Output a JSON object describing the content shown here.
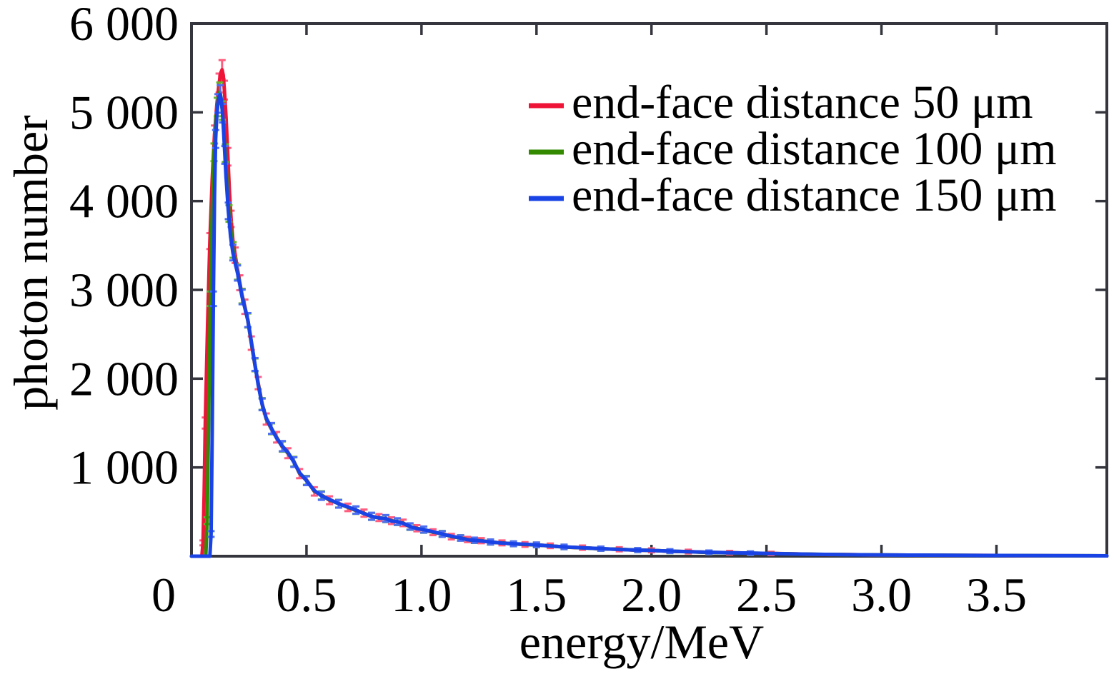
{
  "figure": {
    "background": "#ffffff",
    "frame_color": "#34353d",
    "text_color": "#000000"
  },
  "chart_data": {
    "type": "line",
    "title": "",
    "xlabel": "energy/MeV",
    "ylabel": "photon number",
    "xlim": [
      0,
      3.98
    ],
    "ylim": [
      0,
      6000
    ],
    "grid": false,
    "legend_position": "top-right",
    "x_ticks": [
      0,
      0.5,
      1.0,
      1.5,
      2.0,
      2.5,
      3.0,
      3.5
    ],
    "x_tick_labels": [
      "0",
      "0.5",
      "1.0",
      "1.5",
      "2.0",
      "2.5",
      "3.0",
      "3.5"
    ],
    "y_ticks": [
      1000,
      2000,
      3000,
      4000,
      5000,
      6000
    ],
    "y_tick_labels": [
      "1 000",
      "2 000",
      "3 000",
      "4 000",
      "5 000",
      "6 000"
    ],
    "series": [
      {
        "name": "end-face distance 50 μm",
        "color": "#ee1437",
        "error_color": "#ff5d80",
        "x": [
          0.0,
          0.045,
          0.05,
          0.055,
          0.06,
          0.07,
          0.08,
          0.09,
          0.1,
          0.11,
          0.12,
          0.128,
          0.133,
          0.138,
          0.143,
          0.15,
          0.158,
          0.165,
          0.172,
          0.18,
          0.19,
          0.2,
          0.21,
          0.22,
          0.232,
          0.245,
          0.26,
          0.276,
          0.29,
          0.307,
          0.325,
          0.348,
          0.37,
          0.395,
          0.419,
          0.445,
          0.47,
          0.5,
          0.534,
          0.565,
          0.6,
          0.64,
          0.68,
          0.715,
          0.75,
          0.783,
          0.815,
          0.845,
          0.87,
          0.895,
          0.92,
          0.95,
          0.98,
          1.01,
          1.05,
          1.09,
          1.13,
          1.17,
          1.2,
          1.23,
          1.26,
          1.3,
          1.35,
          1.4,
          1.45,
          1.5,
          1.56,
          1.62,
          1.7,
          1.78,
          1.86,
          1.94,
          2.0,
          2.08,
          2.16,
          2.25,
          2.34,
          2.43,
          2.52,
          2.62,
          2.72,
          2.85,
          3.0,
          3.15,
          3.3,
          3.45,
          3.6,
          3.75,
          3.9,
          3.98
        ],
        "y": [
          0,
          0,
          150,
          700,
          1500,
          2600,
          3550,
          4250,
          4750,
          5080,
          5330,
          5450,
          5480,
          5420,
          5250,
          4950,
          4500,
          4100,
          3800,
          3560,
          3390,
          3230,
          3080,
          2940,
          2810,
          2650,
          2400,
          2150,
          1950,
          1720,
          1545,
          1430,
          1340,
          1230,
          1160,
          1070,
          930,
          860,
          730,
          690,
          630,
          595,
          550,
          515,
          485,
          445,
          435,
          418,
          400,
          385,
          375,
          330,
          315,
          295,
          270,
          255,
          220,
          208,
          188,
          176,
          175,
          158,
          150,
          138,
          132,
          126,
          117,
          103,
          96,
          83,
          78,
          67,
          66,
          55,
          52,
          42,
          40,
          33,
          31,
          26,
          20,
          18,
          13,
          11,
          9,
          9,
          6,
          5,
          4,
          4
        ]
      },
      {
        "name": "end-face distance 100 μm",
        "color": "#338a00",
        "error_color": "#67b32e",
        "x": [
          0.0,
          0.062,
          0.068,
          0.075,
          0.082,
          0.09,
          0.098,
          0.105,
          0.112,
          0.118,
          0.123,
          0.128,
          0.134,
          0.14,
          0.147,
          0.155,
          0.163,
          0.172,
          0.181,
          0.19,
          0.2,
          0.21,
          0.22,
          0.232,
          0.245,
          0.26,
          0.276,
          0.29,
          0.307,
          0.325,
          0.348,
          0.37,
          0.395,
          0.419,
          0.445,
          0.47,
          0.5,
          0.534,
          0.565,
          0.6,
          0.64,
          0.68,
          0.715,
          0.75,
          0.783,
          0.815,
          0.845,
          0.87,
          0.895,
          0.92,
          0.95,
          0.98,
          1.01,
          1.05,
          1.09,
          1.13,
          1.17,
          1.2,
          1.23,
          1.26,
          1.3,
          1.35,
          1.4,
          1.45,
          1.5,
          1.56,
          1.62,
          1.7,
          1.78,
          1.86,
          1.94,
          2.0,
          2.08,
          2.16,
          2.25,
          2.34,
          2.43,
          2.52,
          2.62,
          2.72,
          2.85,
          3.0,
          3.15,
          3.3,
          3.45,
          3.6,
          3.75,
          3.9,
          3.98
        ],
        "y": [
          0,
          0,
          400,
          1600,
          2900,
          3900,
          4550,
          4870,
          5060,
          5170,
          5230,
          5170,
          5020,
          4800,
          4540,
          4200,
          3860,
          3640,
          3450,
          3310,
          3200,
          3070,
          2930,
          2800,
          2655,
          2410,
          2155,
          1940,
          1715,
          1550,
          1435,
          1335,
          1235,
          1165,
          1065,
          935,
          855,
          735,
          685,
          635,
          592,
          552,
          518,
          482,
          448,
          432,
          422,
          398,
          388,
          372,
          332,
          312,
          298,
          272,
          252,
          222,
          206,
          186,
          178,
          174,
          159,
          149,
          139,
          133,
          127,
          116,
          104,
          95,
          84,
          77,
          68,
          65,
          56,
          51,
          43,
          39,
          34,
          30,
          25,
          21,
          17,
          14,
          11,
          10,
          8,
          7,
          5,
          5,
          4
        ]
      },
      {
        "name": "end-face distance 150 μm",
        "color": "#1a43e6",
        "error_color": "#4e6ef2",
        "x": [
          0.0,
          0.08,
          0.085,
          0.09,
          0.095,
          0.1,
          0.105,
          0.11,
          0.115,
          0.12,
          0.125,
          0.13,
          0.135,
          0.14,
          0.145,
          0.15,
          0.16,
          0.17,
          0.18,
          0.19,
          0.2,
          0.21,
          0.22,
          0.232,
          0.245,
          0.26,
          0.276,
          0.29,
          0.307,
          0.325,
          0.348,
          0.37,
          0.395,
          0.419,
          0.445,
          0.47,
          0.5,
          0.534,
          0.565,
          0.6,
          0.64,
          0.68,
          0.715,
          0.75,
          0.783,
          0.815,
          0.845,
          0.87,
          0.895,
          0.92,
          0.95,
          0.98,
          1.01,
          1.05,
          1.09,
          1.13,
          1.17,
          1.2,
          1.23,
          1.26,
          1.3,
          1.35,
          1.4,
          1.45,
          1.5,
          1.56,
          1.62,
          1.7,
          1.78,
          1.86,
          1.94,
          2.0,
          2.08,
          2.16,
          2.25,
          2.34,
          2.43,
          2.52,
          2.62,
          2.72,
          2.85,
          3.0,
          3.15,
          3.3,
          3.45,
          3.6,
          3.75,
          3.9,
          3.98
        ],
        "y": [
          0,
          0,
          250,
          1400,
          2900,
          4050,
          4700,
          4960,
          5100,
          5180,
          5200,
          5140,
          4990,
          4760,
          4520,
          4280,
          3890,
          3600,
          3420,
          3300,
          3190,
          3060,
          2920,
          2795,
          2660,
          2420,
          2160,
          1930,
          1710,
          1555,
          1440,
          1330,
          1240,
          1170,
          1060,
          940,
          850,
          740,
          680,
          640,
          590,
          555,
          520,
          480,
          450,
          430,
          425,
          395,
          390,
          370,
          335,
          310,
          300,
          275,
          250,
          225,
          205,
          185,
          180,
          172,
          160,
          148,
          140,
          134,
          128,
          115,
          105,
          94,
          85,
          76,
          69,
          64,
          57,
          50,
          44,
          39,
          35,
          30,
          25,
          21,
          17,
          14,
          12,
          10,
          8,
          7,
          6,
          5,
          4
        ]
      }
    ]
  }
}
